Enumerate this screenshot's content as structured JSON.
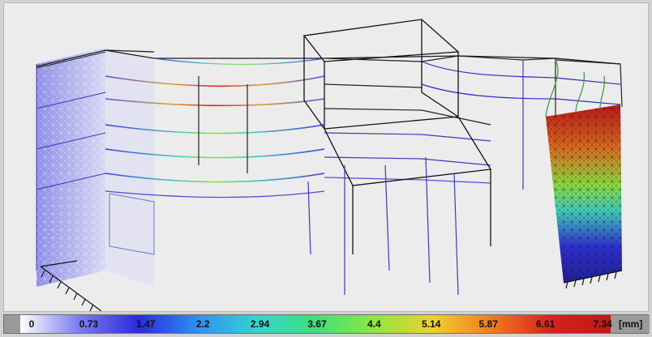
{
  "legend": {
    "ticks": [
      "0",
      "0.73",
      "1.47",
      "2.2",
      "2.94",
      "3.67",
      "4.4",
      "5.14",
      "5.87",
      "6.61",
      "7.34"
    ],
    "unit": "[mm]",
    "gradient_colors": [
      "#ffffff",
      "#7b7bef",
      "#2a2adf",
      "#2f8ff0",
      "#35d3d0",
      "#3fe07a",
      "#8ee640",
      "#f0d030",
      "#f07a20",
      "#d82020",
      "#c01818"
    ]
  },
  "colors": {
    "background": "#ececec",
    "frame_lines": "#1a1a1a",
    "low_displacement": "#5a5ae6",
    "high_displacement": "#d82020"
  }
}
